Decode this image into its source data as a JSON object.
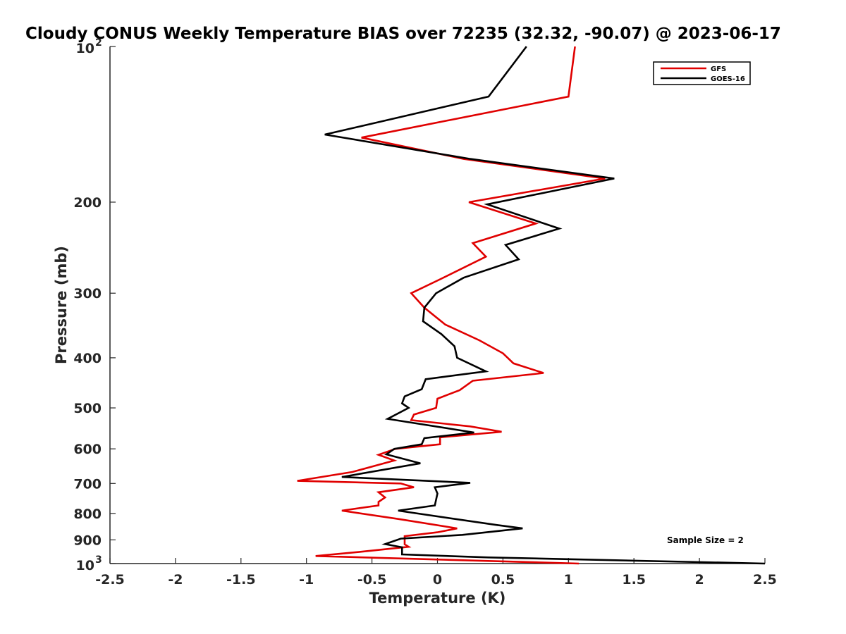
{
  "chart_data": {
    "type": "line",
    "title": "Cloudy CONUS Weekly Temperature BIAS over 72235 (32.32, -90.07) @ 2023-06-17",
    "xlabel": "Temperature (K)",
    "ylabel": "Pressure (mb)",
    "xlim": [
      -2.5,
      2.5
    ],
    "ylim": [
      100,
      1000
    ],
    "yscale": "log",
    "y_reversed": true,
    "x_ticks": [
      -2.5,
      -2,
      -1.5,
      -1,
      -0.5,
      0,
      0.5,
      1,
      1.5,
      2,
      2.5
    ],
    "x_tick_labels": [
      "-2.5",
      "-2",
      "-1.5",
      "-1",
      "-0.5",
      "0",
      "0.5",
      "1",
      "1.5",
      "2",
      "2.5"
    ],
    "y_ticks": [
      200,
      300,
      400,
      500,
      600,
      700,
      800,
      900
    ],
    "y_tick_labels": [
      "200",
      "300",
      "400",
      "500",
      "600",
      "700",
      "800",
      "900"
    ],
    "y_decade_labels": [
      {
        "value": 100,
        "base": "10",
        "exp": "2"
      },
      {
        "value": 1000,
        "base": "10",
        "exp": "3"
      }
    ],
    "grid": false,
    "legend_position": "top-right",
    "annotation": "Sample Size = 2",
    "series": [
      {
        "name": "GFS",
        "color": "#e00000",
        "points": [
          [
            1.05,
            100
          ],
          [
            1.0,
            125
          ],
          [
            -0.58,
            150
          ],
          [
            0.2,
            165
          ],
          [
            1.28,
            180
          ],
          [
            0.24,
            200
          ],
          [
            0.75,
            220
          ],
          [
            0.27,
            240
          ],
          [
            0.37,
            255
          ],
          [
            0.02,
            282
          ],
          [
            -0.2,
            300
          ],
          [
            -0.1,
            320
          ],
          [
            0.06,
            345
          ],
          [
            0.32,
            370
          ],
          [
            0.5,
            392
          ],
          [
            0.58,
            410
          ],
          [
            0.81,
            428
          ],
          [
            0.27,
            443
          ],
          [
            0.17,
            462
          ],
          [
            0.0,
            480
          ],
          [
            -0.01,
            500
          ],
          [
            -0.18,
            515
          ],
          [
            -0.2,
            528
          ],
          [
            0.25,
            543
          ],
          [
            0.49,
            556
          ],
          [
            0.02,
            570
          ],
          [
            0.02,
            588
          ],
          [
            -0.32,
            600
          ],
          [
            -0.45,
            616
          ],
          [
            -0.33,
            632
          ],
          [
            -0.65,
            665
          ],
          [
            -1.07,
            692
          ],
          [
            -0.28,
            700
          ],
          [
            -0.18,
            712
          ],
          [
            -0.45,
            728
          ],
          [
            -0.4,
            745
          ],
          [
            -0.45,
            760
          ],
          [
            -0.45,
            772
          ],
          [
            -0.73,
            790
          ],
          [
            -0.3,
            820
          ],
          [
            0.15,
            855
          ],
          [
            0.0,
            870
          ],
          [
            -0.25,
            885
          ],
          [
            -0.25,
            918
          ],
          [
            -0.22,
            928
          ],
          [
            -0.6,
            950
          ],
          [
            -0.93,
            967
          ],
          [
            1.08,
            1000
          ]
        ]
      },
      {
        "name": "GOES-16",
        "color": "#000000",
        "points": [
          [
            0.68,
            100
          ],
          [
            0.39,
            125
          ],
          [
            -0.86,
            148
          ],
          [
            0.25,
            165
          ],
          [
            1.35,
            180
          ],
          [
            0.38,
            202
          ],
          [
            0.93,
            225
          ],
          [
            0.52,
            242
          ],
          [
            0.62,
            258
          ],
          [
            0.2,
            280
          ],
          [
            -0.01,
            300
          ],
          [
            -0.1,
            320
          ],
          [
            -0.11,
            340
          ],
          [
            0.03,
            360
          ],
          [
            0.13,
            380
          ],
          [
            0.15,
            400
          ],
          [
            0.37,
            425
          ],
          [
            -0.09,
            440
          ],
          [
            -0.12,
            460
          ],
          [
            -0.25,
            475
          ],
          [
            -0.27,
            490
          ],
          [
            -0.22,
            500
          ],
          [
            -0.38,
            525
          ],
          [
            0.28,
            558
          ],
          [
            -0.1,
            572
          ],
          [
            -0.12,
            588
          ],
          [
            -0.33,
            600
          ],
          [
            -0.39,
            615
          ],
          [
            -0.13,
            640
          ],
          [
            -0.73,
            680
          ],
          [
            0.25,
            698
          ],
          [
            -0.02,
            712
          ],
          [
            0.0,
            732
          ],
          [
            -0.01,
            752
          ],
          [
            -0.02,
            772
          ],
          [
            -0.3,
            790
          ],
          [
            0.45,
            842
          ],
          [
            0.65,
            855
          ],
          [
            0.19,
            880
          ],
          [
            -0.28,
            895
          ],
          [
            -0.4,
            917
          ],
          [
            -0.27,
            930
          ],
          [
            -0.27,
            960
          ],
          [
            0.39,
            973
          ],
          [
            2.5,
            1000
          ]
        ]
      }
    ]
  }
}
